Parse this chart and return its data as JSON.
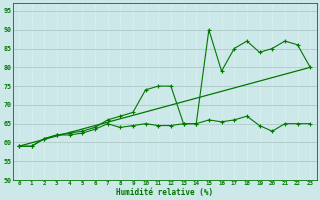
{
  "xlabel": "Humidité relative (%)",
  "xlim": [
    -0.5,
    23.5
  ],
  "ylim": [
    50,
    97
  ],
  "yticks": [
    50,
    55,
    60,
    65,
    70,
    75,
    80,
    85,
    90,
    95
  ],
  "xticks": [
    0,
    1,
    2,
    3,
    4,
    5,
    6,
    7,
    8,
    9,
    10,
    11,
    12,
    13,
    14,
    15,
    16,
    17,
    18,
    19,
    20,
    21,
    22,
    23
  ],
  "bg_color": "#cce8e8",
  "line_color": "#007700",
  "grid_color_h": "#b0c8c8",
  "grid_color_v": "#daf0f0",
  "series1_x": [
    0,
    1,
    2,
    3,
    4,
    5,
    6,
    7,
    8,
    9,
    10,
    11,
    12,
    13,
    14,
    15,
    16,
    17,
    18,
    19,
    20,
    21,
    22,
    23
  ],
  "series1_y": [
    59,
    59,
    61,
    62,
    62,
    62.5,
    63.5,
    65,
    64,
    64.5,
    65,
    64.5,
    64.5,
    65,
    65,
    66,
    65.5,
    66,
    67,
    64.5,
    63,
    65,
    65,
    65
  ],
  "series2_x": [
    0,
    1,
    2,
    3,
    4,
    5,
    6,
    7,
    8,
    9,
    10,
    11,
    12,
    13,
    14,
    15,
    16,
    17,
    18,
    19,
    20,
    21,
    22,
    23
  ],
  "series2_y": [
    59,
    59,
    61,
    62,
    62.5,
    63,
    64,
    66,
    67,
    68,
    74,
    75,
    75,
    65,
    65,
    90,
    79,
    85,
    87,
    84,
    85,
    87,
    86,
    80
  ],
  "series3_x": [
    0,
    23
  ],
  "series3_y": [
    59,
    80
  ]
}
